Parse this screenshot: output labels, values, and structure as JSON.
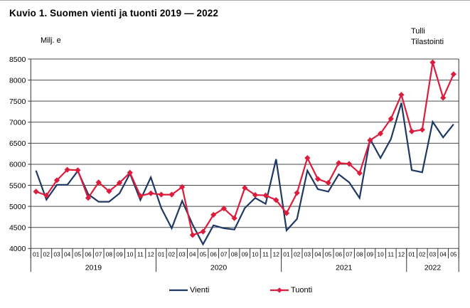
{
  "page": {
    "title": "Kuvio 1. Suomen vienti ja tuonti 2019 — 2022"
  },
  "source": {
    "line1": "Tulli",
    "line2": "Tilastointi"
  },
  "colors": {
    "vienti": "#1F3864",
    "tuonti": "#DC1C3C",
    "grid": "#4a4a4a",
    "axis": "#333333"
  },
  "chart_data": {
    "type": "line",
    "title": "Kuvio 1. Suomen vienti ja tuonti 2019 — 2022",
    "unit_label": "Milj. e",
    "xlabel": "",
    "ylabel": "Milj. e",
    "ylim": [
      4000,
      8500
    ],
    "y_step": 500,
    "grid": true,
    "legend_position": "bottom",
    "year_groups": [
      {
        "year": "2019",
        "months": [
          "01",
          "02",
          "03",
          "04",
          "05",
          "06",
          "07",
          "08",
          "09",
          "10",
          "11",
          "12"
        ]
      },
      {
        "year": "2020",
        "months": [
          "01",
          "02",
          "03",
          "04",
          "05",
          "06",
          "07",
          "08",
          "09",
          "10",
          "11",
          "12"
        ]
      },
      {
        "year": "2021",
        "months": [
          "01",
          "02",
          "03",
          "04",
          "05",
          "06",
          "07",
          "08",
          "09",
          "10",
          "11",
          "12"
        ]
      },
      {
        "year": "2022",
        "months": [
          "01",
          "02",
          "03",
          "04",
          "05"
        ]
      }
    ],
    "series": [
      {
        "name": "Vienti",
        "color_key": "vienti",
        "marker": "none",
        "values": [
          5850,
          5160,
          5510,
          5510,
          5840,
          5290,
          5110,
          5110,
          5310,
          5780,
          5150,
          5690,
          4960,
          4480,
          5130,
          4570,
          4100,
          4550,
          4480,
          4450,
          4960,
          5200,
          5060,
          6120,
          4430,
          4700,
          5850,
          5410,
          5350,
          5760,
          5570,
          5200,
          6600,
          6150,
          6600,
          7460,
          5860,
          5810,
          7010,
          6640,
          6950
        ]
      },
      {
        "name": "Tuonti",
        "color_key": "tuonti",
        "marker": "diamond",
        "values": [
          5350,
          5260,
          5620,
          5870,
          5860,
          5200,
          5570,
          5360,
          5560,
          5800,
          5250,
          5310,
          5280,
          5280,
          5460,
          4320,
          4400,
          4800,
          4950,
          4720,
          5440,
          5270,
          5260,
          5150,
          4840,
          5320,
          6150,
          5650,
          5560,
          6030,
          6010,
          5790,
          6570,
          6730,
          7080,
          7650,
          6780,
          6820,
          8420,
          7580,
          8140
        ]
      }
    ]
  }
}
